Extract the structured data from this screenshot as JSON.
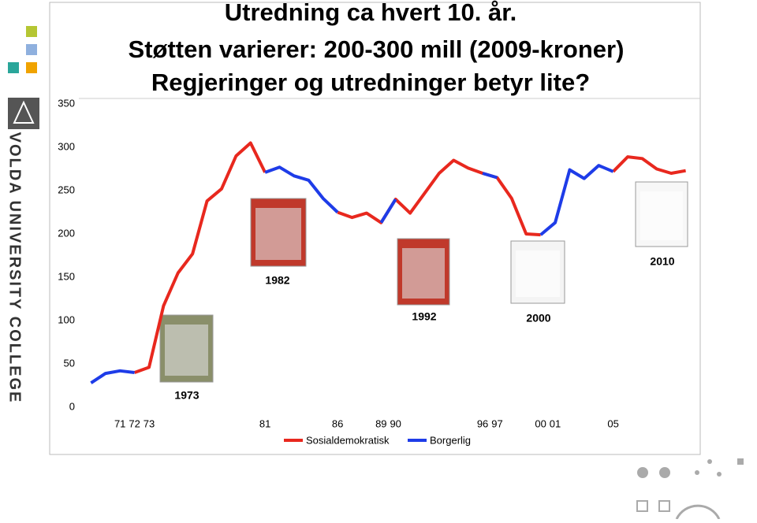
{
  "chart_data": {
    "type": "line",
    "title_lines": [
      "Utredning ca hvert 10. år.",
      "Støtten varierer: 200-300 mill (2009-kroner)",
      "Regjeringer og utredninger betyr lite?"
    ],
    "sidebar_text": "VOLDA UNIVERSITY COLLEGE",
    "x": [
      1969,
      1970,
      1971,
      1972,
      1973,
      1974,
      1975,
      1976,
      1977,
      1978,
      1979,
      1980,
      1981,
      1982,
      1983,
      1984,
      1985,
      1986,
      1987,
      1988,
      1989,
      1990,
      1991,
      1992,
      1993,
      1994,
      1995,
      1996,
      1997,
      1998,
      1999,
      2000,
      2001,
      2002,
      2003,
      2004,
      2005,
      2006,
      2007,
      2008,
      2009,
      2010
    ],
    "series": [
      {
        "name": "Sosialdemokratisk",
        "color": "#e8281e",
        "values": [
          null,
          null,
          null,
          40,
          46,
          117,
          155,
          177,
          238,
          252,
          290,
          305,
          271,
          null,
          null,
          null,
          null,
          225,
          219,
          224,
          213,
          240,
          224,
          247,
          270,
          285,
          276,
          270,
          265,
          241,
          200,
          199,
          null,
          null,
          null,
          null,
          272,
          289,
          287,
          275,
          270,
          273
        ]
      },
      {
        "name": "Borgerlig",
        "color": "#1e3ce8",
        "values": [
          28,
          39,
          42,
          40,
          null,
          null,
          null,
          null,
          null,
          null,
          null,
          null,
          271,
          277,
          267,
          262,
          241,
          225,
          null,
          null,
          213,
          240,
          null,
          null,
          null,
          null,
          null,
          270,
          265,
          null,
          null,
          199,
          213,
          274,
          264,
          279,
          272,
          null,
          null,
          null,
          null,
          null
        ]
      }
    ],
    "annotations": [
      "1973",
      "1982",
      "1992",
      "2000",
      "2010"
    ],
    "xlim": [
      1968,
      2011
    ],
    "xticks": [
      {
        "value": 1971,
        "label": "71"
      },
      {
        "value": 1972,
        "label": "72"
      },
      {
        "value": 1973,
        "label": "73"
      },
      {
        "value": 1981,
        "label": "81"
      },
      {
        "value": 1986,
        "label": "86"
      },
      {
        "value": 1989,
        "label": "89"
      },
      {
        "value": 1990,
        "label": "90"
      },
      {
        "value": 1996,
        "label": "96"
      },
      {
        "value": 1997,
        "label": "97"
      },
      {
        "value": 2000,
        "label": "00"
      },
      {
        "value": 2001,
        "label": "01"
      },
      {
        "value": 2005,
        "label": "05"
      }
    ],
    "ylim": [
      0,
      350
    ],
    "yticks": [
      0,
      50,
      100,
      150,
      200,
      250,
      300,
      350
    ],
    "grid": false,
    "legend": "bottom"
  }
}
